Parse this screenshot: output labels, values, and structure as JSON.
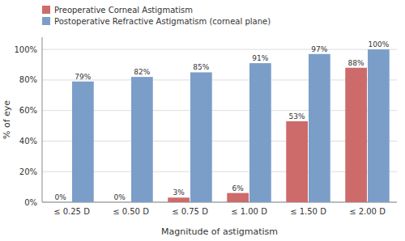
{
  "chart_data": {
    "type": "bar",
    "xlabel": "Magnitude of astigmatism",
    "ylabel": "% of eye",
    "categories": [
      "≤ 0.25 D",
      "≤ 0.50 D",
      "≤ 0.75 D",
      "≤ 1.00 D",
      "≤ 1.50 D",
      "≤ 2.00 D"
    ],
    "series": [
      {
        "name": "Preoperative Corneal Astigmatism",
        "color": "#CD6B6B",
        "values": [
          0,
          0,
          3,
          6,
          53,
          88
        ],
        "value_labels": [
          "0%",
          "0%",
          "3%",
          "6%",
          "53%",
          "88%"
        ]
      },
      {
        "name": "Postoperative Refractive Astigmatism (corneal plane)",
        "color": "#7B9EC9",
        "values": [
          79,
          82,
          85,
          91,
          97,
          100
        ],
        "value_labels": [
          "79%",
          "82%",
          "85%",
          "91%",
          "97%",
          "100%"
        ]
      }
    ],
    "ylim": [
      0,
      108
    ],
    "yticks": [
      {
        "value": 0,
        "label": "0%"
      },
      {
        "value": 20,
        "label": "20%"
      },
      {
        "value": 40,
        "label": "40%"
      },
      {
        "value": 60,
        "label": "60%"
      },
      {
        "value": 80,
        "label": "80%"
      },
      {
        "value": 100,
        "label": "100%"
      }
    ],
    "grid": true,
    "legend": "top",
    "data_labels": true
  }
}
